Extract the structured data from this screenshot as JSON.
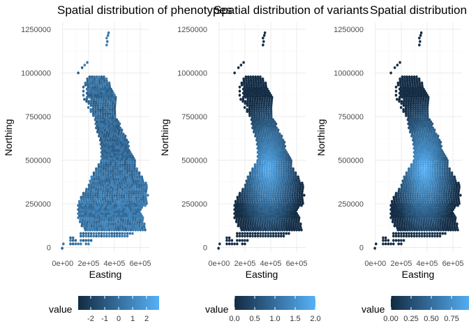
{
  "chart_data": [
    {
      "type": "heatmap",
      "title": "Spatial distribution of phenotypes",
      "xlabel": "Easting",
      "ylabel": "Northing",
      "xlim": [
        -10000,
        670000
      ],
      "ylim": [
        -30000,
        1290000
      ],
      "xticks": [
        0,
        200000,
        400000,
        600000
      ],
      "xtick_labels": [
        "0e+00",
        "2e+05",
        "4e+05",
        "6e+05"
      ],
      "yticks": [
        0,
        250000,
        500000,
        750000,
        1000000,
        1250000
      ],
      "ytick_labels": [
        "0",
        "250000",
        "500000",
        "750000",
        "1000000",
        "1250000"
      ],
      "grid": true,
      "legend": {
        "title": "value",
        "position": "bottom",
        "min": -2.9,
        "max": 2.9,
        "ticks": [
          -2,
          -1,
          0,
          1,
          2
        ],
        "tick_labels": [
          "-2",
          "-1",
          "0",
          "1",
          "2"
        ],
        "color_low": "#132b43",
        "color_high": "#56b1f7"
      },
      "field": "phenotype"
    },
    {
      "type": "heatmap",
      "title": "Spatial distribution of variants",
      "xlabel": "Easting",
      "ylabel": "Northing",
      "xlim": [
        -10000,
        670000
      ],
      "ylim": [
        -30000,
        1290000
      ],
      "xticks": [
        0,
        200000,
        400000,
        600000
      ],
      "xtick_labels": [
        "0e+00",
        "2e+05",
        "4e+05",
        "6e+05"
      ],
      "yticks": [
        0,
        250000,
        500000,
        750000,
        1000000,
        1250000
      ],
      "ytick_labels": [
        "0",
        "250000",
        "500000",
        "750000",
        "1000000",
        "1250000"
      ],
      "grid": true,
      "legend": {
        "title": "value",
        "position": "bottom",
        "min": 0,
        "max": 2.0,
        "ticks": [
          0,
          0.5,
          1.0,
          1.5,
          2.0
        ],
        "tick_labels": [
          "0.0",
          "0.5",
          "1.0",
          "1.5",
          "2.0"
        ],
        "color_low": "#132b43",
        "color_high": "#56b1f7"
      },
      "field": "variant"
    },
    {
      "type": "heatmap",
      "title": "Spatial distribution",
      "xlabel": "Easting",
      "ylabel": "Northing",
      "xlim": [
        -10000,
        670000
      ],
      "ylim": [
        -30000,
        1290000
      ],
      "xticks": [
        0,
        200000,
        400000,
        600000
      ],
      "xtick_labels": [
        "0e+00",
        "2e+05",
        "4e+05",
        "6e+05"
      ],
      "yticks": [
        0,
        250000,
        500000,
        750000,
        1000000,
        1250000
      ],
      "ytick_labels": [
        "0",
        "250000",
        "500000",
        "750000",
        "1000000",
        "1250000"
      ],
      "grid": true,
      "legend": {
        "title": "value",
        "position": "bottom",
        "min": 0,
        "max": 1.0,
        "ticks": [
          0,
          0.25,
          0.5,
          0.75
        ],
        "tick_labels": [
          "0.00",
          "0.25",
          "0.50",
          "0.75"
        ],
        "color_low": "#132b43",
        "color_high": "#56b1f7"
      },
      "field": "weight"
    }
  ],
  "hex_grid": {
    "hex_width": 18500,
    "row_height": 11700,
    "cells": [
      [
        -4000,
        -5000
      ],
      [
        5000,
        20000
      ],
      [
        60000,
        20000
      ],
      [
        80000,
        20000
      ],
      [
        100000,
        20000
      ],
      [
        120000,
        20000
      ],
      [
        140000,
        20000
      ],
      [
        180000,
        20000
      ],
      [
        200000,
        20000
      ],
      [
        60000,
        40000
      ],
      [
        80000,
        40000
      ],
      [
        100000,
        40000
      ],
      [
        140000,
        40000
      ],
      [
        160000,
        40000
      ],
      [
        180000,
        40000
      ],
      [
        200000,
        40000
      ],
      [
        220000,
        40000
      ],
      [
        60000,
        55000
      ],
      [
        80000,
        55000
      ],
      [
        140000,
        65000
      ],
      [
        160000,
        65000
      ],
      [
        180000,
        65000
      ],
      [
        200000,
        65000
      ],
      [
        220000,
        65000
      ],
      [
        240000,
        65000
      ],
      [
        260000,
        65000
      ],
      [
        280000,
        65000
      ],
      [
        300000,
        65000
      ],
      [
        320000,
        65000
      ],
      [
        340000,
        65000
      ],
      [
        360000,
        65000
      ],
      [
        380000,
        65000
      ],
      [
        400000,
        65000
      ],
      [
        420000,
        65000
      ],
      [
        440000,
        65000
      ],
      [
        460000,
        65000
      ],
      [
        480000,
        65000
      ],
      [
        500000,
        65000
      ],
      [
        140000,
        80000
      ],
      [
        160000,
        80000
      ],
      [
        180000,
        80000
      ],
      [
        200000,
        80000
      ],
      [
        220000,
        80000
      ],
      [
        240000,
        80000
      ],
      [
        260000,
        80000
      ],
      [
        280000,
        80000
      ],
      [
        300000,
        80000
      ],
      [
        320000,
        80000
      ],
      [
        340000,
        80000
      ],
      [
        360000,
        80000
      ],
      [
        380000,
        80000
      ],
      [
        400000,
        80000
      ],
      [
        420000,
        80000
      ],
      [
        440000,
        80000
      ],
      [
        460000,
        80000
      ],
      [
        480000,
        80000
      ],
      [
        500000,
        80000
      ],
      [
        520000,
        80000
      ],
      [
        540000,
        80000
      ]
    ]
  }
}
